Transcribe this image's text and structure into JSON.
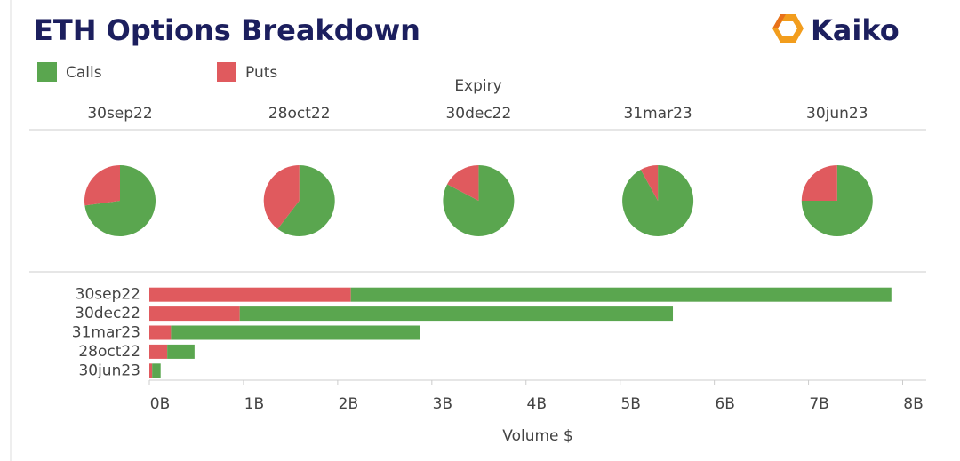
{
  "header": {
    "title": "ETH Options Breakdown",
    "brand": "Kaiko"
  },
  "chart_data": [
    {
      "type": "pie",
      "title": "Expiry",
      "categories": [
        "30sep22",
        "28oct22",
        "30dec22",
        "31mar23",
        "30jun23"
      ],
      "series": [
        {
          "name": "Calls",
          "color": "#5aa64f",
          "values": [
            5.74,
            0.29,
            4.6,
            2.64,
            0.09
          ]
        },
        {
          "name": "Puts",
          "color": "#e05a5e",
          "values": [
            2.14,
            0.19,
            0.96,
            0.23,
            0.03
          ]
        }
      ]
    },
    {
      "type": "hbar",
      "stacked": true,
      "xlabel": "Volume $",
      "categories": [
        "30sep22",
        "30dec22",
        "31mar23",
        "28oct22",
        "30jun23"
      ],
      "series": [
        {
          "name": "Puts",
          "color": "#e05a5e",
          "values": [
            2.14,
            0.96,
            0.23,
            0.19,
            0.03
          ]
        },
        {
          "name": "Calls",
          "color": "#5aa64f",
          "values": [
            5.74,
            4.6,
            2.64,
            0.29,
            0.09
          ]
        }
      ],
      "xlim": [
        0,
        8.25
      ],
      "xticks": [
        {
          "value": 0,
          "label": "0B"
        },
        {
          "value": 1,
          "label": "1B"
        },
        {
          "value": 2,
          "label": "2B"
        },
        {
          "value": 3,
          "label": "3B"
        },
        {
          "value": 4,
          "label": "4B"
        },
        {
          "value": 5,
          "label": "5B"
        },
        {
          "value": 6,
          "label": "6B"
        },
        {
          "value": 7,
          "label": "7B"
        },
        {
          "value": 8,
          "label": "8B"
        }
      ]
    }
  ]
}
